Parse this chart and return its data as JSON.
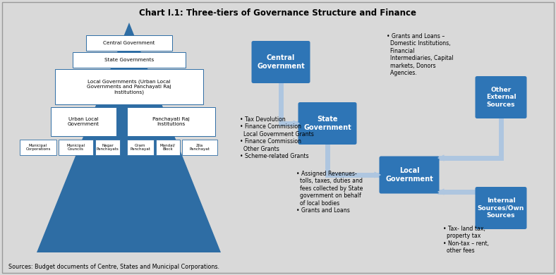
{
  "title": "Chart I.1: Three-tiers of Governance Structure and Finance",
  "bg_color": "#d9d9d9",
  "dark_blue": "#2e6da4",
  "light_blue": "#aec6e0",
  "box_blue": "#2e75b6",
  "source_text": "Sources: Budget documents of Centre, States and Municipal Corporations.",
  "flow_text_1": "• Tax Devolution\n• Finance Commission\n  Local Government Grants\n• Finance Commission\n  Other Grants\n• Scheme-related Grants",
  "flow_text_2": "• Assigned Revenues-\n  tolls, taxes, duties and\n  fees collected by State\n  government on behalf\n  of local bodies\n• Grants and Loans",
  "flow_text_3": "• Grants and Loans –\n  Domestic Institutions,\n  Financial\n  Intermediaries, Capital\n  markets, Donors\n  Agencies.",
  "flow_text_4": "• Tax- land tax,\n  property tax\n• Non-tax – rent,\n  other fees"
}
